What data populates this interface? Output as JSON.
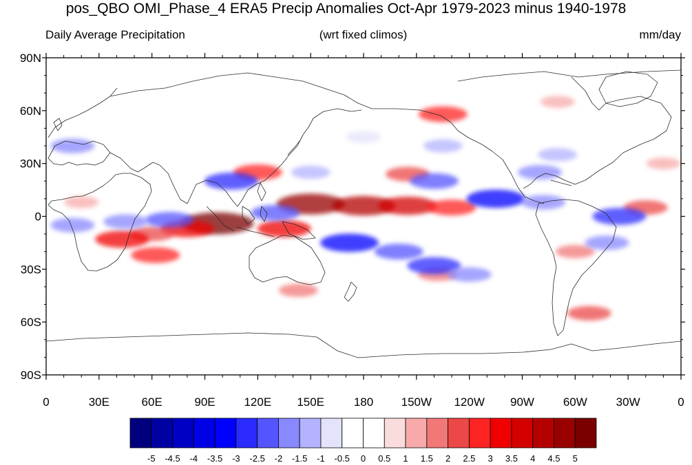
{
  "figure": {
    "title": "pos_QBO OMI_Phase_4 ERA5 Precip Anomalies Oct-Apr 1979-2023 minus 1940-1978",
    "left_subtitle": "Daily Average Precipitation",
    "center_subtitle": "(wrt fixed climos)",
    "units": "mm/day"
  },
  "axes": {
    "y_ticks": [
      {
        "label": "90N",
        "lat": 90
      },
      {
        "label": "60N",
        "lat": 60
      },
      {
        "label": "30N",
        "lat": 30
      },
      {
        "label": "0",
        "lat": 0
      },
      {
        "label": "30S",
        "lat": -30
      },
      {
        "label": "60S",
        "lat": -60
      },
      {
        "label": "90S",
        "lat": -90
      }
    ],
    "x_ticks": [
      {
        "label": "0",
        "lon": 0
      },
      {
        "label": "30E",
        "lon": 30
      },
      {
        "label": "60E",
        "lon": 60
      },
      {
        "label": "90E",
        "lon": 90
      },
      {
        "label": "120E",
        "lon": 120
      },
      {
        "label": "150E",
        "lon": 150
      },
      {
        "label": "180",
        "lon": 180
      },
      {
        "label": "150W",
        "lon": 210
      },
      {
        "label": "120W",
        "lon": 240
      },
      {
        "label": "90W",
        "lon": 270
      },
      {
        "label": "60W",
        "lon": 300
      },
      {
        "label": "30W",
        "lon": 330
      },
      {
        "label": "0",
        "lon": 360
      }
    ]
  },
  "colorbar": {
    "labels": [
      "-5",
      "-4.5",
      "-4",
      "-3.5",
      "-3",
      "-2.5",
      "-2",
      "-1.5",
      "-1",
      "-0.5",
      "0",
      "0.5",
      "1",
      "1.5",
      "2",
      "2.5",
      "3",
      "3.5",
      "4",
      "4.5",
      "5"
    ],
    "colors": [
      "#00007f",
      "#0000a3",
      "#0000c4",
      "#0000e6",
      "#0000ff",
      "#2b2bff",
      "#5555ff",
      "#8888ff",
      "#b3b3ff",
      "#e3e3fb",
      "#ffffff",
      "#ffffff",
      "#fbdcdc",
      "#f8aaaa",
      "#f27878",
      "#ec4848",
      "#ff2424",
      "#f00000",
      "#d40000",
      "#b50000",
      "#990000",
      "#7a0000"
    ]
  },
  "anomaly_regions": [
    {
      "lon": 150,
      "lat": 7,
      "value": 4.5
    },
    {
      "lon": 180,
      "lat": 6,
      "value": 4
    },
    {
      "lon": 205,
      "lat": 6,
      "value": 3.5
    },
    {
      "lon": 230,
      "lat": 5,
      "value": 2.5
    },
    {
      "lon": 97,
      "lat": -4,
      "value": 5
    },
    {
      "lon": 80,
      "lat": -7,
      "value": 3
    },
    {
      "lon": 60,
      "lat": -10,
      "value": 2
    },
    {
      "lon": 135,
      "lat": -7,
      "value": 3
    },
    {
      "lon": 43,
      "lat": -13,
      "value": 3
    },
    {
      "lon": 62,
      "lat": -22,
      "value": 2.5
    },
    {
      "lon": 205,
      "lat": 24,
      "value": 2
    },
    {
      "lon": 225,
      "lat": 58,
      "value": 2.5
    },
    {
      "lon": 120,
      "lat": 25,
      "value": 2.5
    },
    {
      "lon": 143,
      "lat": -42,
      "value": 1.5
    },
    {
      "lon": 222,
      "lat": -33,
      "value": 1.5
    },
    {
      "lon": 300,
      "lat": -20,
      "value": 1.5
    },
    {
      "lon": 308,
      "lat": -55,
      "value": 2
    },
    {
      "lon": 340,
      "lat": 5,
      "value": 2
    },
    {
      "lon": 350,
      "lat": 30,
      "value": 1
    },
    {
      "lon": 290,
      "lat": 65,
      "value": 1
    },
    {
      "lon": 20,
      "lat": 8,
      "value": 1
    },
    {
      "lon": 172,
      "lat": -15,
      "value": -3.5
    },
    {
      "lon": 200,
      "lat": -20,
      "value": -2.5
    },
    {
      "lon": 220,
      "lat": -28,
      "value": -3
    },
    {
      "lon": 240,
      "lat": -33,
      "value": -2
    },
    {
      "lon": 70,
      "lat": -2,
      "value": -2.5
    },
    {
      "lon": 45,
      "lat": -3,
      "value": -2
    },
    {
      "lon": 105,
      "lat": 20,
      "value": -3
    },
    {
      "lon": 130,
      "lat": 2,
      "value": -2.5
    },
    {
      "lon": 150,
      "lat": 25,
      "value": -1.5
    },
    {
      "lon": 220,
      "lat": 20,
      "value": -2.5
    },
    {
      "lon": 255,
      "lat": 10,
      "value": -3.5
    },
    {
      "lon": 282,
      "lat": 8,
      "value": -2
    },
    {
      "lon": 325,
      "lat": 0,
      "value": -3
    },
    {
      "lon": 318,
      "lat": -15,
      "value": -2
    },
    {
      "lon": 280,
      "lat": 25,
      "value": -2
    },
    {
      "lon": 290,
      "lat": 35,
      "value": -1.5
    },
    {
      "lon": 15,
      "lat": 40,
      "value": -2
    },
    {
      "lon": 180,
      "lat": 45,
      "value": -1
    },
    {
      "lon": 225,
      "lat": 40,
      "value": -1.5
    },
    {
      "lon": 15,
      "lat": -5,
      "value": -2
    }
  ]
}
